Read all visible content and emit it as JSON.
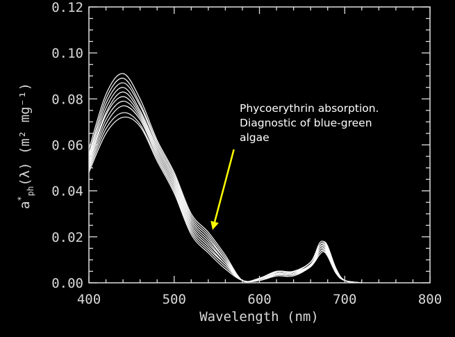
{
  "chart_data": {
    "type": "line",
    "xlabel": "Wavelength (nm)",
    "ylabel_main": "a",
    "ylabel_star": "*",
    "ylabel_sub": "ph",
    "ylabel_tail": "(λ) (m² mg⁻¹)",
    "xlim": [
      400,
      800
    ],
    "ylim": [
      0,
      0.12
    ],
    "x_ticks": [
      400,
      500,
      600,
      700,
      800
    ],
    "x_tick_labels": [
      "400",
      "500",
      "600",
      "700",
      "800"
    ],
    "y_ticks": [
      0,
      0.02,
      0.04,
      0.06,
      0.08,
      0.1,
      0.12
    ],
    "y_tick_labels": [
      "0.00",
      "0.02",
      "0.04",
      "0.06",
      "0.08",
      "0.10",
      "0.12"
    ],
    "grid": false,
    "line_color": "#ffffff",
    "series": [
      {
        "x": [
          400,
          420,
          440,
          460,
          480,
          500,
          520,
          540,
          560,
          580,
          600,
          620,
          640,
          660,
          670,
          675,
          680,
          690,
          700,
          720
        ],
        "y": [
          0.058,
          0.082,
          0.091,
          0.08,
          0.062,
          0.048,
          0.03,
          0.022,
          0.012,
          0.001,
          0.002,
          0.005,
          0.005,
          0.009,
          0.017,
          0.018,
          0.016,
          0.006,
          0.001,
          0.0
        ]
      },
      {
        "x": [
          400,
          420,
          440,
          460,
          480,
          500,
          520,
          540,
          560,
          580,
          600,
          620,
          640,
          660,
          670,
          675,
          680,
          690,
          700,
          720
        ],
        "y": [
          0.056,
          0.08,
          0.089,
          0.078,
          0.061,
          0.047,
          0.029,
          0.021,
          0.011,
          0.001,
          0.002,
          0.005,
          0.005,
          0.009,
          0.016,
          0.0175,
          0.0155,
          0.006,
          0.001,
          0.0
        ]
      },
      {
        "x": [
          400,
          420,
          440,
          460,
          480,
          500,
          520,
          540,
          560,
          580,
          600,
          620,
          640,
          660,
          670,
          675,
          680,
          690,
          700,
          720
        ],
        "y": [
          0.055,
          0.078,
          0.087,
          0.077,
          0.06,
          0.046,
          0.028,
          0.02,
          0.01,
          0.001,
          0.002,
          0.0045,
          0.0045,
          0.009,
          0.016,
          0.017,
          0.015,
          0.006,
          0.001,
          0.0
        ]
      },
      {
        "x": [
          400,
          420,
          440,
          460,
          480,
          500,
          520,
          540,
          560,
          580,
          600,
          620,
          640,
          660,
          670,
          675,
          680,
          690,
          700,
          720
        ],
        "y": [
          0.054,
          0.076,
          0.085,
          0.075,
          0.059,
          0.045,
          0.027,
          0.019,
          0.01,
          0.001,
          0.002,
          0.0045,
          0.0045,
          0.008,
          0.015,
          0.0165,
          0.0145,
          0.0055,
          0.001,
          0.0
        ]
      },
      {
        "x": [
          400,
          420,
          440,
          460,
          480,
          500,
          520,
          540,
          560,
          580,
          600,
          620,
          640,
          660,
          670,
          675,
          680,
          690,
          700,
          720
        ],
        "y": [
          0.053,
          0.074,
          0.083,
          0.074,
          0.058,
          0.044,
          0.026,
          0.018,
          0.009,
          0.001,
          0.0015,
          0.004,
          0.004,
          0.008,
          0.015,
          0.016,
          0.014,
          0.0055,
          0.001,
          0.0
        ]
      },
      {
        "x": [
          400,
          420,
          440,
          460,
          480,
          500,
          520,
          540,
          560,
          580,
          600,
          620,
          640,
          660,
          670,
          675,
          680,
          690,
          700,
          720
        ],
        "y": [
          0.052,
          0.073,
          0.081,
          0.073,
          0.057,
          0.043,
          0.025,
          0.017,
          0.009,
          0.001,
          0.0015,
          0.004,
          0.004,
          0.008,
          0.014,
          0.0155,
          0.0135,
          0.005,
          0.001,
          0.0
        ]
      },
      {
        "x": [
          400,
          420,
          440,
          460,
          480,
          500,
          520,
          540,
          560,
          580,
          600,
          620,
          640,
          660,
          670,
          675,
          680,
          690,
          700,
          720
        ],
        "y": [
          0.051,
          0.071,
          0.079,
          0.072,
          0.056,
          0.042,
          0.024,
          0.016,
          0.008,
          0.001,
          0.0015,
          0.004,
          0.004,
          0.0075,
          0.014,
          0.015,
          0.013,
          0.005,
          0.001,
          0.0
        ]
      },
      {
        "x": [
          400,
          420,
          440,
          460,
          480,
          500,
          520,
          540,
          560,
          580,
          600,
          620,
          640,
          660,
          670,
          675,
          680,
          690,
          700,
          720
        ],
        "y": [
          0.05,
          0.069,
          0.077,
          0.071,
          0.055,
          0.041,
          0.023,
          0.015,
          0.008,
          0.001,
          0.0015,
          0.0035,
          0.0035,
          0.0075,
          0.013,
          0.0145,
          0.0125,
          0.0045,
          0.001,
          0.0
        ]
      },
      {
        "x": [
          400,
          420,
          440,
          460,
          480,
          500,
          520,
          540,
          560,
          580,
          600,
          620,
          640,
          660,
          670,
          675,
          680,
          690,
          700,
          720
        ],
        "y": [
          0.049,
          0.067,
          0.074,
          0.069,
          0.054,
          0.04,
          0.022,
          0.014,
          0.007,
          0.001,
          0.001,
          0.0035,
          0.0035,
          0.007,
          0.013,
          0.014,
          0.012,
          0.0045,
          0.001,
          0.0
        ]
      },
      {
        "x": [
          400,
          420,
          440,
          460,
          480,
          500,
          520,
          540,
          560,
          580,
          600,
          620,
          640,
          660,
          670,
          675,
          680,
          690,
          700,
          720
        ],
        "y": [
          0.048,
          0.065,
          0.072,
          0.068,
          0.053,
          0.039,
          0.021,
          0.013,
          0.006,
          0.001,
          0.001,
          0.003,
          0.003,
          0.007,
          0.012,
          0.0135,
          0.0115,
          0.004,
          0.001,
          0.0
        ]
      }
    ],
    "annotations": [
      {
        "lines": [
          "Phycoerythrin absorption.",
          "Diagnostic of blue-green",
          "algae"
        ],
        "arrow_color": "#ffff00",
        "arrow_target": [
          545,
          0.023
        ],
        "arrow_from": [
          570,
          0.058
        ]
      }
    ]
  }
}
